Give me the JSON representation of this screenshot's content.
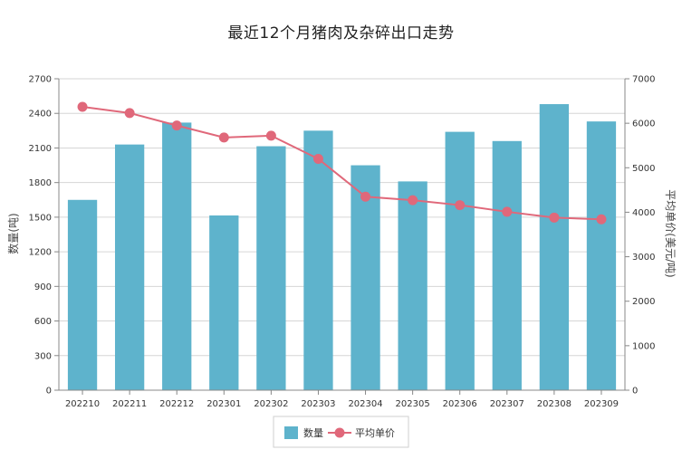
{
  "chart_data": {
    "type": "bar",
    "title": "最近12个月猪肉及杂碎出口走势",
    "categories": [
      "202210",
      "202211",
      "202212",
      "202301",
      "202302",
      "202303",
      "202304",
      "202305",
      "202306",
      "202307",
      "202308",
      "202309"
    ],
    "series": [
      {
        "name": "数量",
        "type": "bar",
        "axis": "left",
        "color": "#5eb3cc",
        "values": [
          1650,
          2130,
          2320,
          1515,
          2115,
          2250,
          1950,
          1810,
          2240,
          2160,
          2480,
          2330
        ]
      },
      {
        "name": "平均单价",
        "type": "line",
        "axis": "right",
        "color": "#e0687a",
        "values": [
          6370,
          6230,
          5950,
          5680,
          5720,
          5200,
          4350,
          4270,
          4160,
          4010,
          3880,
          3840
        ]
      }
    ],
    "ylabel": "数量(吨)",
    "y2label": "平均单价(美元/吨)",
    "ylim": [
      0,
      2700
    ],
    "yticks": [
      0,
      300,
      600,
      900,
      1200,
      1500,
      1800,
      2100,
      2400,
      2700
    ],
    "y2lim": [
      0,
      7000
    ],
    "y2ticks": [
      0,
      1000,
      2000,
      3000,
      4000,
      5000,
      6000,
      7000
    ],
    "grid": true,
    "legend": "bottom-center"
  }
}
